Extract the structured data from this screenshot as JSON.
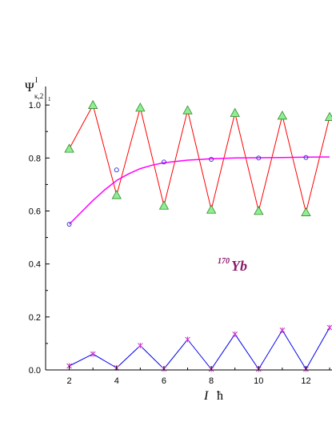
{
  "chart_data": {
    "type": "line",
    "ylabel": {
      "main": "Ψ",
      "superscript": "I",
      "subscript": "κ,2",
      "subsub": "1"
    },
    "xlabel": {
      "main": "I",
      "unit": "ħ"
    },
    "annotation": {
      "sup": "170",
      "text": "Yb",
      "color": "#8b1a6b"
    },
    "xlim": [
      1,
      13.1
    ],
    "ylim": [
      0,
      1.07
    ],
    "xticks": [
      2,
      4,
      6,
      8,
      10,
      12
    ],
    "yticks": [
      0.0,
      0.2,
      0.4,
      0.6,
      0.8,
      1.0
    ],
    "ytick_labels": [
      "0.0",
      "0.2",
      "0.4",
      "0.6",
      "0.8",
      "1.0"
    ],
    "series": [
      {
        "marker": "triangle",
        "line_color": "#ff0000",
        "marker_fill": "#90ee90",
        "marker_edge": "#2e8b2e",
        "x": [
          2,
          3,
          4,
          5,
          6,
          7,
          8,
          9,
          10,
          11,
          12,
          13
        ],
        "y": [
          0.835,
          1.0,
          0.66,
          0.99,
          0.62,
          0.98,
          0.605,
          0.97,
          0.6,
          0.96,
          0.595,
          0.955
        ]
      },
      {
        "marker": "circle",
        "line_color": "none",
        "marker_edge": "#2222cc",
        "x": [
          2,
          4,
          6,
          8,
          10,
          12
        ],
        "y": [
          0.55,
          0.755,
          0.785,
          0.795,
          0.8,
          0.802
        ]
      },
      {
        "marker": "none",
        "line_color": "#ff00ff",
        "curve": "fit",
        "x": [
          2,
          2.5,
          3,
          3.5,
          4,
          4.5,
          5,
          5.5,
          6,
          7,
          8,
          9,
          10,
          11,
          12,
          13
        ],
        "y": [
          0.55,
          0.595,
          0.64,
          0.68,
          0.715,
          0.74,
          0.76,
          0.773,
          0.782,
          0.792,
          0.797,
          0.8,
          0.801,
          0.802,
          0.803,
          0.804
        ]
      },
      {
        "marker": "star",
        "line_color": "#0000ee",
        "marker_edge": "#cc33cc",
        "x": [
          2,
          3,
          4,
          5,
          6,
          7,
          8,
          9,
          10,
          11,
          12,
          13
        ],
        "y": [
          0.015,
          0.06,
          0.008,
          0.092,
          0.004,
          0.115,
          0.003,
          0.135,
          0.003,
          0.15,
          0.003,
          0.16
        ]
      }
    ]
  }
}
